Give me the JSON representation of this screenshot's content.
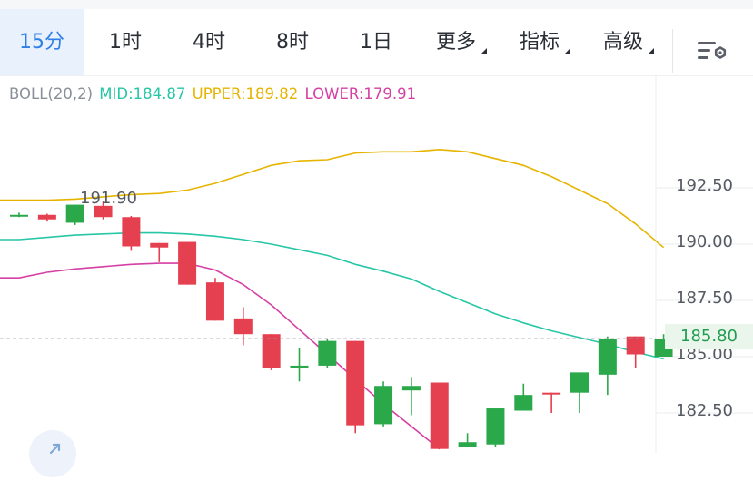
{
  "tabs": [
    {
      "label": "15分",
      "active": true
    },
    {
      "label": "1时"
    },
    {
      "label": "4时"
    },
    {
      "label": "8时"
    },
    {
      "label": "1日"
    },
    {
      "label": "更多",
      "dropdown": true
    },
    {
      "label": "指标",
      "dropdown": true
    },
    {
      "label": "高级",
      "dropdown": true
    }
  ],
  "indicator": {
    "name": "BOLL(20,2)",
    "mid": "MID:184.87",
    "upper": "UPPER:189.82",
    "lower": "LOWER:179.91",
    "colors": {
      "mid": "#26c6a6",
      "upper": "#e6b400",
      "lower": "#d63fa3"
    }
  },
  "price_axis": [
    "192.50",
    "190.00",
    "187.50",
    "185.00",
    "182.50"
  ],
  "current_price": "185.80",
  "max_marker": "191.90",
  "colors": {
    "up": "#2aa84a",
    "down": "#e5404f",
    "accent": "#2f7fe6"
  },
  "chart_data": {
    "type": "candlestick",
    "ylim": [
      180.9,
      194.2
    ],
    "current_price": 185.8,
    "candles": [
      {
        "o": 191.3,
        "h": 191.4,
        "l": 191.2,
        "c": 191.3
      },
      {
        "o": 191.3,
        "h": 191.35,
        "l": 191.0,
        "c": 191.1
      },
      {
        "o": 190.95,
        "h": 191.75,
        "l": 190.85,
        "c": 191.75
      },
      {
        "o": 191.7,
        "h": 191.9,
        "l": 191.1,
        "c": 191.2
      },
      {
        "o": 191.2,
        "h": 191.25,
        "l": 189.7,
        "c": 189.9
      },
      {
        "o": 190.05,
        "h": 190.05,
        "l": 189.2,
        "c": 189.85
      },
      {
        "o": 190.1,
        "h": 190.1,
        "l": 188.2,
        "c": 188.2
      },
      {
        "o": 188.3,
        "h": 188.5,
        "l": 186.6,
        "c": 186.6
      },
      {
        "o": 186.7,
        "h": 187.2,
        "l": 185.5,
        "c": 186.0
      },
      {
        "o": 186.0,
        "h": 186.0,
        "l": 184.4,
        "c": 184.5
      },
      {
        "o": 184.5,
        "h": 185.4,
        "l": 183.9,
        "c": 184.6
      },
      {
        "o": 184.6,
        "h": 185.8,
        "l": 184.5,
        "c": 185.7
      },
      {
        "o": 185.7,
        "h": 185.7,
        "l": 181.6,
        "c": 181.95
      },
      {
        "o": 182.0,
        "h": 183.9,
        "l": 181.9,
        "c": 183.7
      },
      {
        "o": 183.5,
        "h": 184.1,
        "l": 182.4,
        "c": 183.7
      },
      {
        "o": 183.85,
        "h": 183.85,
        "l": 180.9,
        "c": 180.9
      },
      {
        "o": 181.0,
        "h": 181.6,
        "l": 181.0,
        "c": 181.2
      },
      {
        "o": 181.1,
        "h": 182.7,
        "l": 181.0,
        "c": 182.7
      },
      {
        "o": 182.6,
        "h": 183.8,
        "l": 182.6,
        "c": 183.3
      },
      {
        "o": 183.4,
        "h": 183.4,
        "l": 182.5,
        "c": 183.35
      },
      {
        "o": 183.4,
        "h": 184.3,
        "l": 182.5,
        "c": 184.3
      },
      {
        "o": 184.2,
        "h": 185.9,
        "l": 183.3,
        "c": 185.8
      },
      {
        "o": 185.9,
        "h": 185.9,
        "l": 184.5,
        "c": 185.1
      },
      {
        "o": 185.0,
        "h": 186.0,
        "l": 185.0,
        "c": 185.8
      }
    ],
    "boll_upper": [
      191.95,
      191.95,
      192.0,
      192.1,
      192.2,
      192.25,
      192.4,
      192.7,
      193.1,
      193.5,
      193.7,
      193.75,
      194.05,
      194.1,
      194.1,
      194.2,
      194.1,
      193.8,
      193.5,
      193.0,
      192.4,
      191.8,
      190.9,
      189.85
    ],
    "boll_mid": [
      190.2,
      190.3,
      190.4,
      190.45,
      190.5,
      190.5,
      190.45,
      190.35,
      190.2,
      190.0,
      189.75,
      189.5,
      189.1,
      188.8,
      188.45,
      187.9,
      187.4,
      186.9,
      186.5,
      186.15,
      185.85,
      185.55,
      185.2,
      184.9
    ],
    "boll_lower": [
      188.5,
      188.75,
      188.9,
      189.0,
      189.1,
      189.15,
      189.15,
      188.85,
      188.2,
      187.3,
      186.2,
      185.1,
      184.0,
      182.9,
      181.9,
      180.9
    ]
  }
}
